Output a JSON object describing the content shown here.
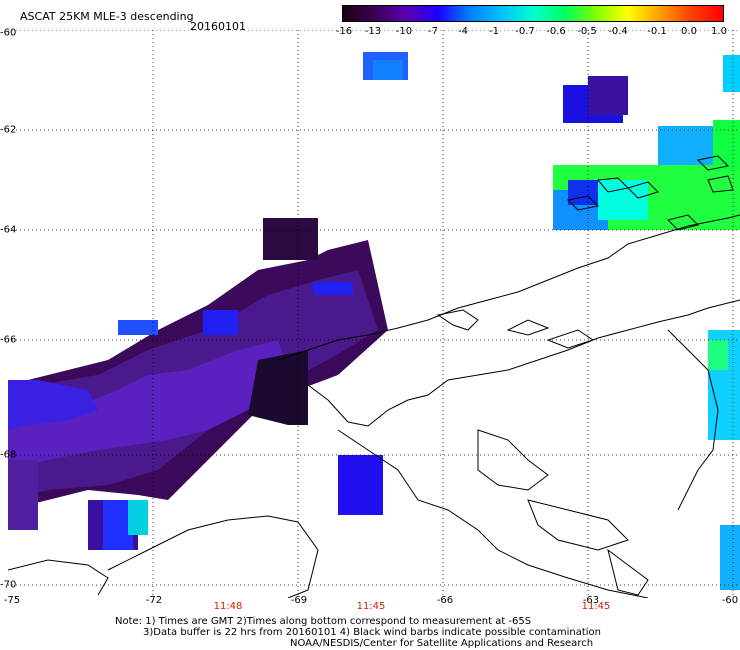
{
  "header": {
    "title": "ASCAT 25KM MLE-3 descending",
    "date": "20160101"
  },
  "colorbar": {
    "ticks": [
      "-16",
      "-13",
      "-10",
      "-7",
      "-4",
      "-1",
      "-0.7",
      "-0.6",
      "-0.5",
      "-0.4",
      "-0.1",
      "0.0",
      "1.0"
    ],
    "colors": [
      "#1a0010",
      "#3a0058",
      "#5a00b0",
      "#2000ff",
      "#0080ff",
      "#00c0ff",
      "#00ffd0",
      "#00ff60",
      "#80ff00",
      "#ffff00",
      "#ffa000",
      "#ff4000",
      "#ff0000"
    ]
  },
  "axes": {
    "lat_labels": [
      "-60",
      "-62",
      "-64",
      "-66",
      "-68",
      "-70"
    ],
    "lon_labels": [
      "-75",
      "-72",
      "-69",
      "-66",
      "-63",
      "-60"
    ],
    "time_labels": [
      "11:48",
      "11:45",
      "11:45"
    ]
  },
  "notes": {
    "line1": "Note: 1) Times are GMT 2)Times along bottom correspond to measurement at -65S",
    "line2": "3)Data buffer is 22 hrs from 20160101 4) Black wind barbs indicate possible contamination",
    "line3": "NOAA/NESDIS/Center for Satellite Applications and Research"
  }
}
